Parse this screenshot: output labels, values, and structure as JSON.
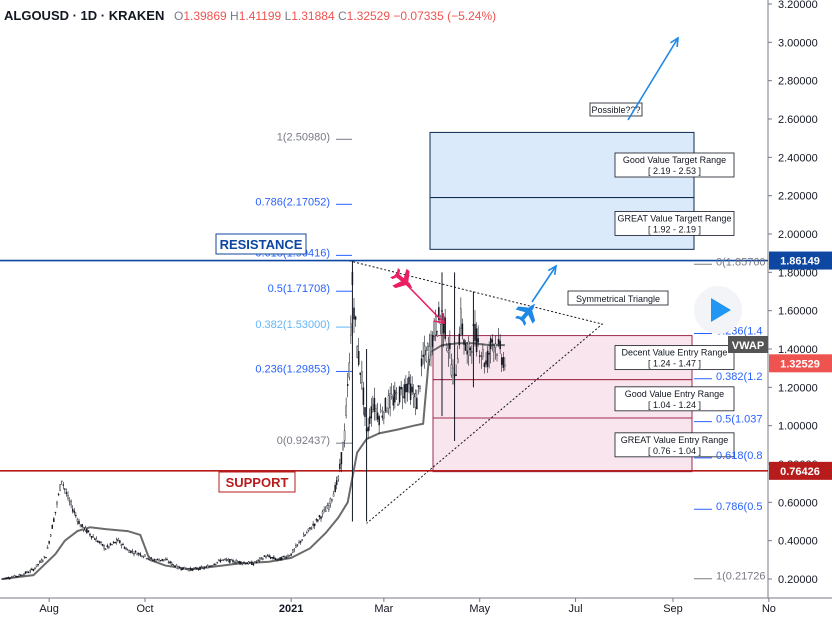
{
  "header": {
    "symbol": "ALGOUSD · 1D · KRAKEN",
    "ohlc": {
      "open_label": "O",
      "open": "1.39869",
      "high_label": "H",
      "high": "1.41199",
      "low_label": "L",
      "low": "1.31884",
      "close_label": "C",
      "close": "1.32529",
      "change": "−0.07335 (−5.24%)"
    }
  },
  "colors": {
    "up": "#26a69a",
    "down": "#ef5350",
    "resistance": "#0d47a1",
    "support": "#b71c1c",
    "fib_label": "#2962ff",
    "target_box_fill": "#d6e8f9",
    "entry_box_fill": "#f8e1ea",
    "vwap": "#6b6b6b",
    "arrow": "#1e88e5",
    "plane_down": "#e91e63"
  },
  "chart_data": {
    "type": "candlestick",
    "price_axis": {
      "ticks": [
        "3.20000",
        "3.00000",
        "2.80000",
        "2.60000",
        "2.40000",
        "2.20000",
        "2.00000",
        "1.80000",
        "1.60000",
        "1.40000",
        "1.20000",
        "1.00000",
        "0.80000",
        "0.60000",
        "0.40000",
        "0.20000"
      ],
      "tick_values": [
        3.2,
        3.0,
        2.8,
        2.6,
        2.4,
        2.2,
        2.0,
        1.8,
        1.6,
        1.4,
        1.2,
        1.0,
        0.8,
        0.6,
        0.4,
        0.2
      ],
      "ylim": [
        0.0,
        3.22
      ]
    },
    "time_axis": {
      "ticks": [
        "Aug",
        "Oct",
        "2021",
        "Mar",
        "May",
        "Jul",
        "Sep",
        "No"
      ],
      "tick_days": [
        30,
        91,
        184,
        243,
        304,
        365,
        427,
        488
      ],
      "xlim_days": [
        0,
        513
      ]
    },
    "price_markers": [
      {
        "label": "1.86149",
        "value": 1.86149,
        "color_key": "resistance"
      },
      {
        "label": "1.32529",
        "value": 1.32529,
        "color_key": "down"
      },
      {
        "label": "0.76426",
        "value": 0.76426,
        "color_key": "support"
      }
    ],
    "horizontal_lines": [
      {
        "name": "RESISTANCE",
        "value": 1.86149
      },
      {
        "name": "SUPPORT",
        "value": 0.76426
      }
    ],
    "fib_levels": [
      {
        "label": "1(2.50980)",
        "value": 2.5098
      },
      {
        "label": "0.786(2.17052)",
        "value": 2.17052
      },
      {
        "label": "0.618(1.90416)",
        "value": 1.90416
      },
      {
        "label": "0.5(1.71708)",
        "value": 1.71708
      },
      {
        "label": "0.382(1.53000)",
        "value": 1.53
      },
      {
        "label": "0.236(1.29853)",
        "value": 1.29853
      },
      {
        "label": "0(0.92437)",
        "value": 0.92437
      }
    ],
    "fib_levels_right": [
      {
        "label": "0(1.85760",
        "value": 1.8576
      },
      {
        "label": "0.236(1.4",
        "value": 1.4968
      },
      {
        "label": "0.382(1.2",
        "value": 1.2603
      },
      {
        "label": "0.5(1.037",
        "value": 1.0368
      },
      {
        "label": "0.618(0.8",
        "value": 0.8473
      },
      {
        "label": "0.786(0.5",
        "value": 0.5797
      },
      {
        "label": "1(0.21726",
        "value": 0.21726
      }
    ],
    "zones": [
      {
        "label": "Good Value Target Range",
        "range": "[ 2.19 - 2.53 ]",
        "low": 2.19,
        "high": 2.53,
        "kind": "target"
      },
      {
        "label": "GREAT Value Targett Range",
        "range": "[ 1.92 - 2.19 ]",
        "low": 1.92,
        "high": 2.19,
        "kind": "target"
      },
      {
        "label": "Decent Value Entry Range",
        "range": "[ 1.24 - 1.47 ]",
        "low": 1.24,
        "high": 1.47,
        "kind": "entry"
      },
      {
        "label": "Good Value Entry Range",
        "range": "[ 1.04 - 1.24 ]",
        "low": 1.04,
        "high": 1.24,
        "kind": "entry"
      },
      {
        "label": "GREAT Value Entry Range",
        "range": "[ 0.76 - 1.04 ]",
        "low": 0.76,
        "high": 1.04,
        "kind": "entry"
      }
    ],
    "annotations": {
      "possible": "Possible???",
      "triangle": "Symmetrical Triangle",
      "vwap": "VWAP",
      "resistance": "RESISTANCE",
      "support": "SUPPORT"
    },
    "price_path": [
      [
        0,
        0.2
      ],
      [
        12,
        0.22
      ],
      [
        20,
        0.25
      ],
      [
        28,
        0.32
      ],
      [
        34,
        0.55
      ],
      [
        38,
        0.72
      ],
      [
        42,
        0.62
      ],
      [
        50,
        0.48
      ],
      [
        58,
        0.42
      ],
      [
        66,
        0.36
      ],
      [
        74,
        0.4
      ],
      [
        80,
        0.35
      ],
      [
        88,
        0.33
      ],
      [
        96,
        0.3
      ],
      [
        104,
        0.3
      ],
      [
        112,
        0.26
      ],
      [
        120,
        0.25
      ],
      [
        130,
        0.26
      ],
      [
        140,
        0.3
      ],
      [
        150,
        0.29
      ],
      [
        160,
        0.28
      ],
      [
        168,
        0.32
      ],
      [
        176,
        0.3
      ],
      [
        184,
        0.33
      ],
      [
        192,
        0.42
      ],
      [
        200,
        0.5
      ],
      [
        208,
        0.58
      ],
      [
        214,
        0.72
      ],
      [
        218,
        0.95
      ],
      [
        221,
        1.3
      ],
      [
        223,
        1.74
      ],
      [
        226,
        1.4
      ],
      [
        229,
        1.25
      ],
      [
        232,
        0.95
      ],
      [
        236,
        1.12
      ],
      [
        240,
        1.05
      ],
      [
        246,
        1.12
      ],
      [
        252,
        1.15
      ],
      [
        258,
        1.22
      ],
      [
        264,
        1.12
      ],
      [
        268,
        1.35
      ],
      [
        272,
        1.4
      ],
      [
        276,
        1.52
      ],
      [
        280,
        1.58
      ],
      [
        284,
        1.42
      ],
      [
        288,
        1.22
      ],
      [
        292,
        1.55
      ],
      [
        296,
        1.35
      ],
      [
        300,
        1.48
      ],
      [
        304,
        1.42
      ],
      [
        308,
        1.32
      ],
      [
        312,
        1.45
      ],
      [
        316,
        1.4
      ],
      [
        320,
        1.33
      ]
    ],
    "vwap_path": [
      [
        0,
        0.2
      ],
      [
        20,
        0.22
      ],
      [
        34,
        0.33
      ],
      [
        40,
        0.4
      ],
      [
        48,
        0.45
      ],
      [
        56,
        0.47
      ],
      [
        66,
        0.46
      ],
      [
        80,
        0.45
      ],
      [
        88,
        0.43
      ],
      [
        94,
        0.3
      ],
      [
        104,
        0.27
      ],
      [
        120,
        0.25
      ],
      [
        140,
        0.27
      ],
      [
        150,
        0.28
      ],
      [
        170,
        0.29
      ],
      [
        184,
        0.31
      ],
      [
        196,
        0.36
      ],
      [
        206,
        0.44
      ],
      [
        214,
        0.52
      ],
      [
        220,
        0.6
      ],
      [
        226,
        0.86
      ],
      [
        232,
        0.93
      ],
      [
        240,
        0.96
      ],
      [
        252,
        0.98
      ],
      [
        262,
        1.0
      ],
      [
        268,
        1.01
      ],
      [
        272,
        1.38
      ],
      [
        280,
        1.42
      ],
      [
        290,
        1.43
      ],
      [
        300,
        1.43
      ],
      [
        310,
        1.42
      ],
      [
        320,
        1.42
      ]
    ]
  }
}
